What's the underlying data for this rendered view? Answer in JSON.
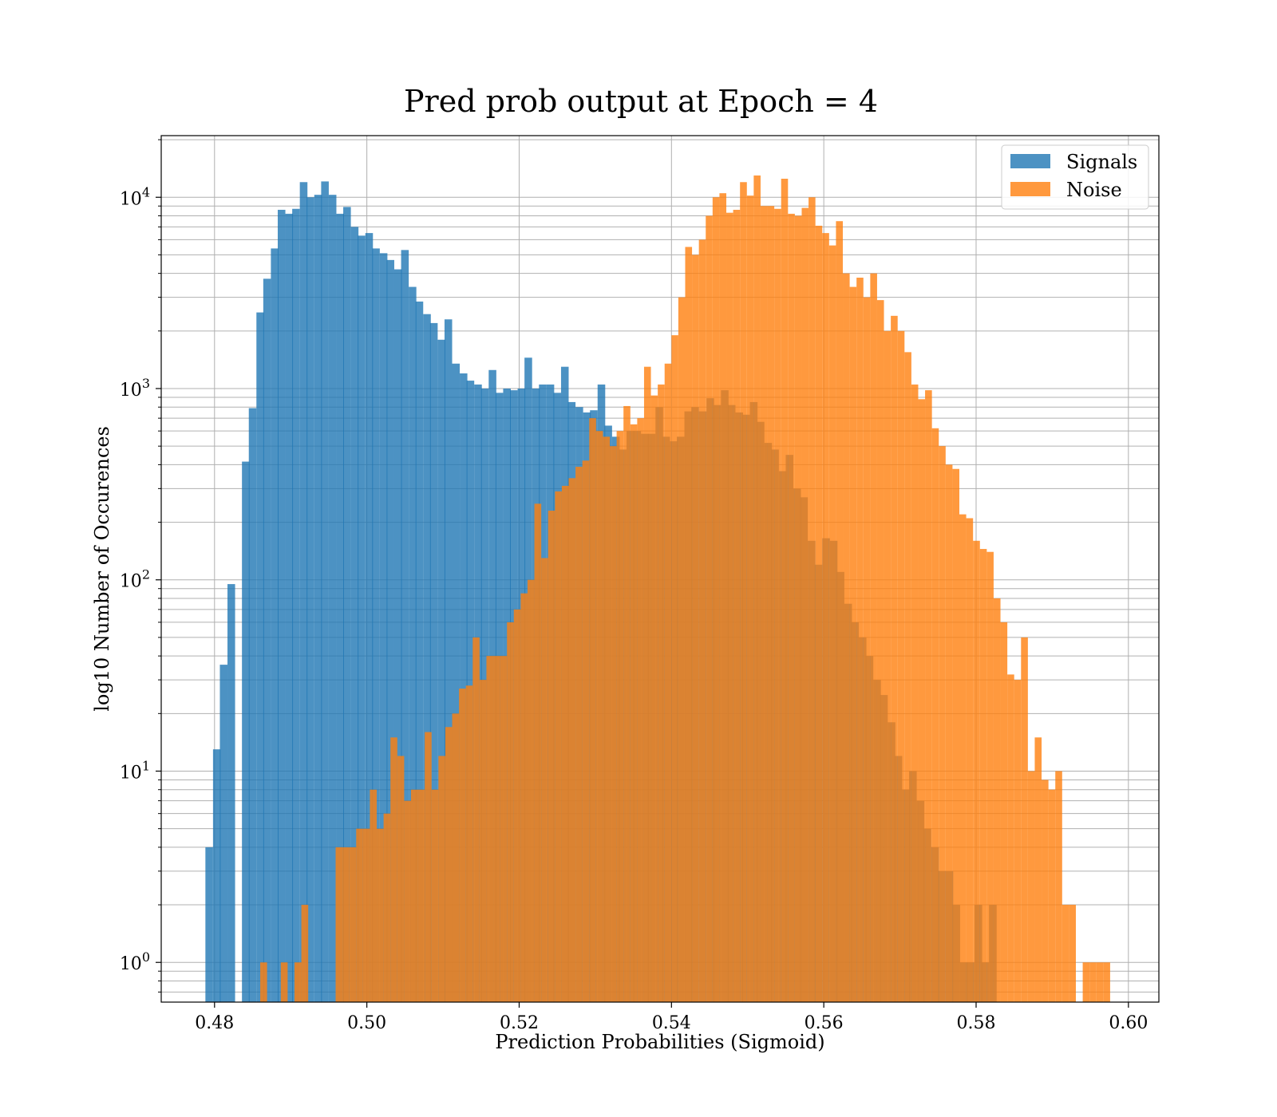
{
  "chart_data": {
    "type": "bar",
    "histogram": true,
    "title": "Pred prob output at Epoch = 4",
    "xlabel": "Prediction Probabilities (Sigmoid)",
    "ylabel": "log10 Number of Occurences",
    "xlim": [
      0.473,
      0.604
    ],
    "ylim": [
      0.62,
      21000
    ],
    "yscale": "log",
    "grid": true,
    "grid_minor_y": true,
    "legend": "top-right",
    "xticks": [
      0.48,
      0.5,
      0.52,
      0.54,
      0.56,
      0.58,
      0.6
    ],
    "xtick_labels": [
      "0.48",
      "0.50",
      "0.52",
      "0.54",
      "0.56",
      "0.58",
      "0.60"
    ],
    "yticks": [
      1,
      10,
      100,
      1000,
      10000
    ],
    "ytick_labels": [
      {
        "base": "10",
        "exp": "0"
      },
      {
        "base": "10",
        "exp": "1"
      },
      {
        "base": "10",
        "exp": "2"
      },
      {
        "base": "10",
        "exp": "3"
      },
      {
        "base": "10",
        "exp": "4"
      }
    ],
    "series": [
      {
        "name": "Signals",
        "color": "#1f77b4",
        "opacity": 0.8,
        "bins": [
          [
            0.4788,
            4
          ],
          [
            0.4798,
            13
          ],
          [
            0.4807,
            36
          ],
          [
            0.4817,
            95
          ],
          [
            0.4826,
            0
          ],
          [
            0.4836,
            415
          ],
          [
            0.4845,
            790
          ],
          [
            0.4855,
            2500
          ],
          [
            0.4864,
            3750
          ],
          [
            0.4874,
            5400
          ],
          [
            0.4883,
            8600
          ],
          [
            0.4893,
            8200
          ],
          [
            0.4902,
            8700
          ],
          [
            0.4912,
            12000
          ],
          [
            0.4921,
            10000
          ],
          [
            0.4931,
            10300
          ],
          [
            0.494,
            12100
          ],
          [
            0.495,
            10300
          ],
          [
            0.496,
            8200
          ],
          [
            0.4969,
            8900
          ],
          [
            0.4979,
            7000
          ],
          [
            0.4988,
            6300
          ],
          [
            0.4998,
            6500
          ],
          [
            0.5007,
            5400
          ],
          [
            0.5017,
            5100
          ],
          [
            0.5026,
            4700
          ],
          [
            0.5036,
            4200
          ],
          [
            0.5045,
            5300
          ],
          [
            0.5055,
            3400
          ],
          [
            0.5064,
            2850
          ],
          [
            0.5074,
            2450
          ],
          [
            0.5083,
            2200
          ],
          [
            0.5093,
            1800
          ],
          [
            0.5102,
            2300
          ],
          [
            0.5112,
            1350
          ],
          [
            0.5122,
            1200
          ],
          [
            0.5131,
            1100
          ],
          [
            0.5141,
            1050
          ],
          [
            0.515,
            1000
          ],
          [
            0.516,
            1250
          ],
          [
            0.5169,
            950
          ],
          [
            0.5179,
            1000
          ],
          [
            0.5188,
            980
          ],
          [
            0.5198,
            1000
          ],
          [
            0.5207,
            1450
          ],
          [
            0.5217,
            1000
          ],
          [
            0.5226,
            1050
          ],
          [
            0.5236,
            1050
          ],
          [
            0.5245,
            950
          ],
          [
            0.5255,
            1300
          ],
          [
            0.5264,
            850
          ],
          [
            0.5274,
            800
          ],
          [
            0.5284,
            750
          ],
          [
            0.5293,
            770
          ],
          [
            0.5303,
            1050
          ],
          [
            0.5312,
            640
          ],
          [
            0.5322,
            560
          ],
          [
            0.5331,
            480
          ],
          [
            0.5341,
            600
          ],
          [
            0.535,
            600
          ],
          [
            0.536,
            580
          ],
          [
            0.5369,
            580
          ],
          [
            0.5379,
            800
          ],
          [
            0.5388,
            560
          ],
          [
            0.5398,
            530
          ],
          [
            0.5407,
            560
          ],
          [
            0.5417,
            760
          ],
          [
            0.5426,
            800
          ],
          [
            0.5436,
            760
          ],
          [
            0.5446,
            890
          ],
          [
            0.5455,
            820
          ],
          [
            0.5465,
            980
          ],
          [
            0.5474,
            820
          ],
          [
            0.5484,
            750
          ],
          [
            0.5493,
            730
          ],
          [
            0.5503,
            850
          ],
          [
            0.5512,
            670
          ],
          [
            0.5522,
            520
          ],
          [
            0.5531,
            480
          ],
          [
            0.5541,
            370
          ],
          [
            0.555,
            450
          ],
          [
            0.556,
            300
          ],
          [
            0.5569,
            270
          ],
          [
            0.5579,
            160
          ],
          [
            0.5588,
            120
          ],
          [
            0.5598,
            165
          ],
          [
            0.5608,
            160
          ],
          [
            0.5617,
            110
          ],
          [
            0.5627,
            75
          ],
          [
            0.5636,
            60
          ],
          [
            0.5646,
            50
          ],
          [
            0.5655,
            40
          ],
          [
            0.5665,
            30
          ],
          [
            0.5674,
            25
          ],
          [
            0.5684,
            18
          ],
          [
            0.5693,
            12
          ],
          [
            0.5703,
            8
          ],
          [
            0.5712,
            10
          ],
          [
            0.5722,
            7
          ],
          [
            0.5731,
            5
          ],
          [
            0.5741,
            4
          ],
          [
            0.575,
            3
          ],
          [
            0.576,
            3
          ],
          [
            0.5769,
            2
          ],
          [
            0.5779,
            1
          ],
          [
            0.5788,
            1
          ],
          [
            0.5798,
            2
          ],
          [
            0.5807,
            1
          ],
          [
            0.5817,
            2
          ]
        ]
      },
      {
        "name": "Noise",
        "color": "#ff7f0e",
        "opacity": 0.8,
        "bins": [
          [
            0.486,
            1
          ],
          [
            0.4869,
            0
          ],
          [
            0.4878,
            0
          ],
          [
            0.4887,
            1
          ],
          [
            0.4896,
            0
          ],
          [
            0.4905,
            1
          ],
          [
            0.4914,
            2
          ],
          [
            0.4923,
            0
          ],
          [
            0.4932,
            0
          ],
          [
            0.4941,
            0
          ],
          [
            0.495,
            0
          ],
          [
            0.4959,
            4
          ],
          [
            0.4968,
            4
          ],
          [
            0.4977,
            4
          ],
          [
            0.4986,
            5
          ],
          [
            0.4995,
            5
          ],
          [
            0.5004,
            8
          ],
          [
            0.5013,
            5
          ],
          [
            0.5022,
            6
          ],
          [
            0.5031,
            15
          ],
          [
            0.504,
            12
          ],
          [
            0.5049,
            7
          ],
          [
            0.5058,
            8
          ],
          [
            0.5067,
            8
          ],
          [
            0.5076,
            16
          ],
          [
            0.5085,
            8
          ],
          [
            0.5094,
            12
          ],
          [
            0.5103,
            17
          ],
          [
            0.5112,
            20
          ],
          [
            0.5121,
            27
          ],
          [
            0.513,
            28
          ],
          [
            0.5139,
            50
          ],
          [
            0.5148,
            30
          ],
          [
            0.5157,
            40
          ],
          [
            0.5166,
            40
          ],
          [
            0.5175,
            40
          ],
          [
            0.5184,
            60
          ],
          [
            0.5193,
            70
          ],
          [
            0.5202,
            85
          ],
          [
            0.5211,
            100
          ],
          [
            0.522,
            250
          ],
          [
            0.5229,
            130
          ],
          [
            0.5238,
            230
          ],
          [
            0.5247,
            290
          ],
          [
            0.5256,
            310
          ],
          [
            0.5265,
            340
          ],
          [
            0.5274,
            390
          ],
          [
            0.5283,
            420
          ],
          [
            0.5292,
            700
          ],
          [
            0.5301,
            600
          ],
          [
            0.531,
            560
          ],
          [
            0.5319,
            500
          ],
          [
            0.5328,
            600
          ],
          [
            0.5337,
            810
          ],
          [
            0.5346,
            650
          ],
          [
            0.5355,
            700
          ],
          [
            0.5364,
            1300
          ],
          [
            0.5373,
            920
          ],
          [
            0.5382,
            1050
          ],
          [
            0.5391,
            1350
          ],
          [
            0.54,
            1900
          ],
          [
            0.5409,
            3000
          ],
          [
            0.5418,
            5500
          ],
          [
            0.5427,
            5000
          ],
          [
            0.5436,
            6000
          ],
          [
            0.5445,
            8000
          ],
          [
            0.5454,
            10000
          ],
          [
            0.5463,
            10500
          ],
          [
            0.5472,
            8300
          ],
          [
            0.5481,
            8600
          ],
          [
            0.549,
            12000
          ],
          [
            0.5499,
            10200
          ],
          [
            0.5508,
            13000
          ],
          [
            0.5517,
            9000
          ],
          [
            0.5526,
            9000
          ],
          [
            0.5535,
            8700
          ],
          [
            0.5544,
            12500
          ],
          [
            0.5553,
            8200
          ],
          [
            0.5562,
            8000
          ],
          [
            0.5571,
            8800
          ],
          [
            0.558,
            10000
          ],
          [
            0.5589,
            7100
          ],
          [
            0.5598,
            6500
          ],
          [
            0.5607,
            5600
          ],
          [
            0.5616,
            7500
          ],
          [
            0.5625,
            4000
          ],
          [
            0.5634,
            3400
          ],
          [
            0.5643,
            3800
          ],
          [
            0.5652,
            3000
          ],
          [
            0.5661,
            4000
          ],
          [
            0.567,
            2900
          ],
          [
            0.5679,
            2000
          ],
          [
            0.5688,
            2400
          ],
          [
            0.5697,
            2000
          ],
          [
            0.5706,
            1550
          ],
          [
            0.5715,
            1050
          ],
          [
            0.5724,
            880
          ],
          [
            0.5733,
            980
          ],
          [
            0.5742,
            620
          ],
          [
            0.5751,
            500
          ],
          [
            0.576,
            400
          ],
          [
            0.5769,
            380
          ],
          [
            0.5778,
            220
          ],
          [
            0.5787,
            210
          ],
          [
            0.5796,
            160
          ],
          [
            0.5805,
            145
          ],
          [
            0.5814,
            140
          ],
          [
            0.5823,
            80
          ],
          [
            0.5832,
            60
          ],
          [
            0.5841,
            32
          ],
          [
            0.585,
            30
          ],
          [
            0.5859,
            50
          ],
          [
            0.5868,
            10
          ],
          [
            0.5877,
            15
          ],
          [
            0.5886,
            9
          ],
          [
            0.5895,
            8
          ],
          [
            0.5904,
            10
          ],
          [
            0.5913,
            2
          ],
          [
            0.5922,
            2
          ],
          [
            0.5931,
            0
          ],
          [
            0.594,
            1
          ],
          [
            0.5949,
            1
          ],
          [
            0.5958,
            1
          ],
          [
            0.5967,
            1
          ]
        ]
      }
    ]
  }
}
